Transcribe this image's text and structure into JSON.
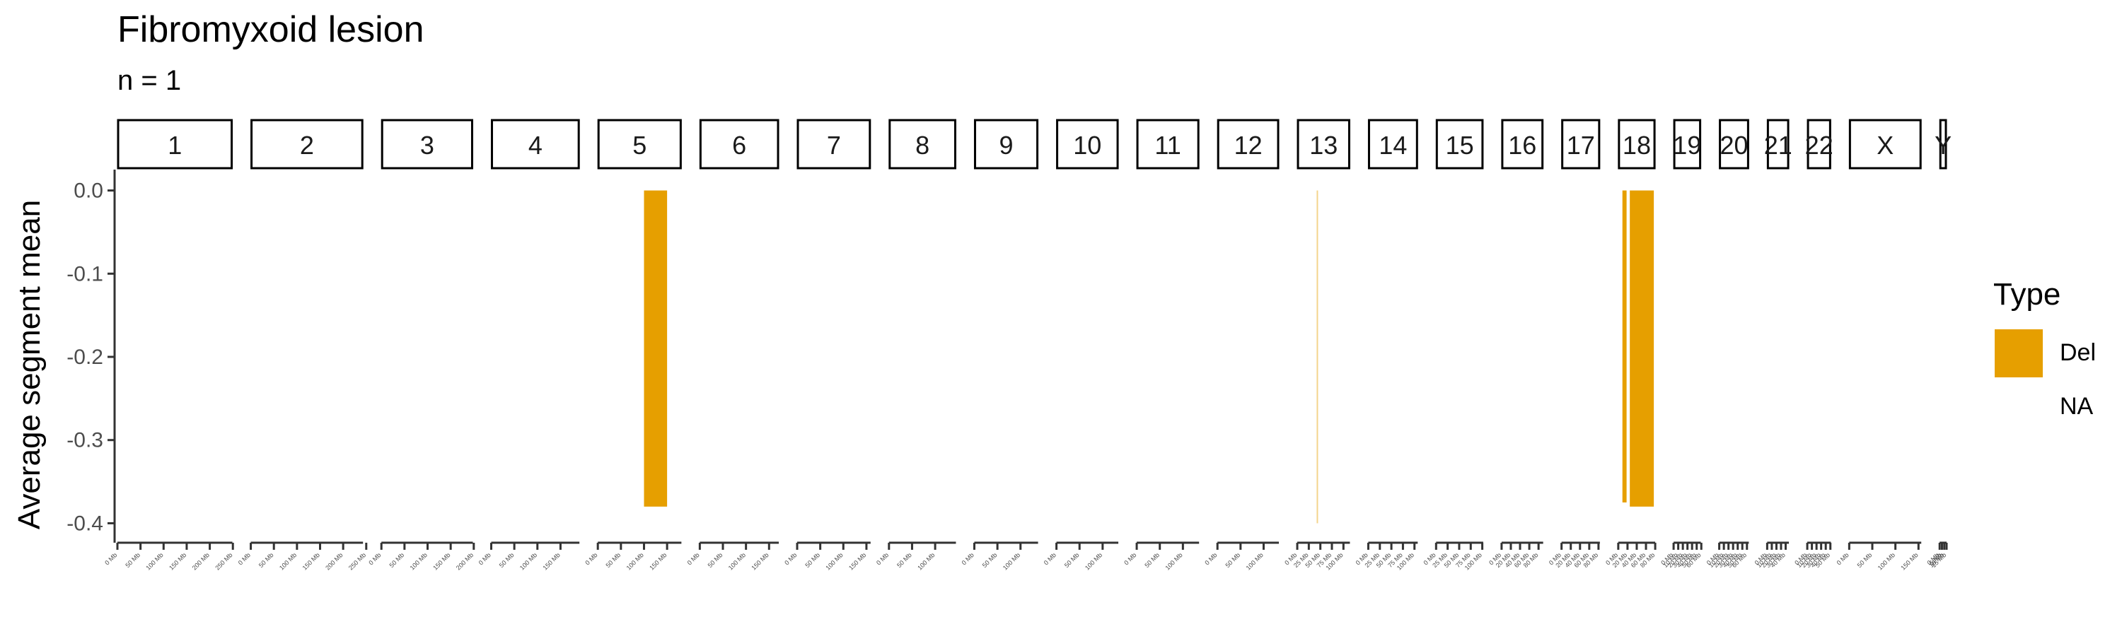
{
  "chart_data": {
    "type": "bar",
    "title": "Fibromyxoid lesion",
    "subtitle": "n = 1",
    "ylabel": "Average segment mean",
    "xlabel": "",
    "ylim": [
      -0.42,
      0.02
    ],
    "yticks": [
      0.0,
      -0.1,
      -0.2,
      -0.3,
      -0.4
    ],
    "ytick_labels": [
      "0.0",
      "-0.1",
      "-0.2",
      "-0.3",
      "-0.4"
    ],
    "grid": false,
    "legend": {
      "title": "Type",
      "position": "right",
      "entries": [
        {
          "label": "Del",
          "color": "#E69F00"
        },
        {
          "label": "NA",
          "color": null
        }
      ]
    },
    "panels": [
      {
        "name": "1",
        "length_mb": 249,
        "ticks": [
          "0 Mb",
          "50 Mb",
          "100 Mb",
          "150 Mb",
          "200 Mb",
          "250 Mb"
        ]
      },
      {
        "name": "2",
        "length_mb": 243,
        "ticks": [
          "0 Mb",
          "50 Mb",
          "100 Mb",
          "150 Mb",
          "200 Mb",
          "250 Mb"
        ]
      },
      {
        "name": "3",
        "length_mb": 198,
        "ticks": [
          "0 Mb",
          "50 Mb",
          "100 Mb",
          "150 Mb",
          "200 Mb"
        ]
      },
      {
        "name": "4",
        "length_mb": 191,
        "ticks": [
          "0 Mb",
          "50 Mb",
          "100 Mb",
          "150 Mb"
        ]
      },
      {
        "name": "5",
        "length_mb": 181,
        "ticks": [
          "0 Mb",
          "50 Mb",
          "100 Mb",
          "150 Mb"
        ]
      },
      {
        "name": "6",
        "length_mb": 171,
        "ticks": [
          "0 Mb",
          "50 Mb",
          "100 Mb",
          "150 Mb"
        ]
      },
      {
        "name": "7",
        "length_mb": 159,
        "ticks": [
          "0 Mb",
          "50 Mb",
          "100 Mb",
          "150 Mb"
        ]
      },
      {
        "name": "8",
        "length_mb": 145,
        "ticks": [
          "0 Mb",
          "50 Mb",
          "100 Mb"
        ]
      },
      {
        "name": "9",
        "length_mb": 138,
        "ticks": [
          "0 Mb",
          "50 Mb",
          "100 Mb"
        ]
      },
      {
        "name": "10",
        "length_mb": 134,
        "ticks": [
          "0 Mb",
          "50 Mb",
          "100 Mb"
        ]
      },
      {
        "name": "11",
        "length_mb": 135,
        "ticks": [
          "0 Mb",
          "50 Mb",
          "100 Mb"
        ]
      },
      {
        "name": "12",
        "length_mb": 133,
        "ticks": [
          "0 Mb",
          "50 Mb",
          "100 Mb"
        ]
      },
      {
        "name": "13",
        "length_mb": 114,
        "ticks": [
          "0 Mb",
          "25 Mb",
          "50 Mb",
          "75 Mb",
          "100 Mb"
        ]
      },
      {
        "name": "14",
        "length_mb": 107,
        "ticks": [
          "0 Mb",
          "25 Mb",
          "50 Mb",
          "75 Mb",
          "100 Mb"
        ]
      },
      {
        "name": "15",
        "length_mb": 102,
        "ticks": [
          "0 Mb",
          "25 Mb",
          "50 Mb",
          "75 Mb",
          "100 Mb"
        ]
      },
      {
        "name": "16",
        "length_mb": 90,
        "ticks": [
          "0 Mb",
          "20 Mb",
          "40 Mb",
          "60 Mb",
          "80 Mb"
        ]
      },
      {
        "name": "17",
        "length_mb": 83,
        "ticks": [
          "0 Mb",
          "20 Mb",
          "40 Mb",
          "60 Mb",
          "80 Mb"
        ]
      },
      {
        "name": "18",
        "length_mb": 80,
        "ticks": [
          "0 Mb",
          "20 Mb",
          "40 Mb",
          "60 Mb",
          "80 Mb"
        ]
      },
      {
        "name": "19",
        "length_mb": 59,
        "ticks": [
          "0 Mb",
          "10 Mb",
          "20 Mb",
          "30 Mb",
          "40 Mb",
          "50 Mb",
          "60 Mb"
        ]
      },
      {
        "name": "20",
        "length_mb": 64,
        "ticks": [
          "0 Mb",
          "10 Mb",
          "20 Mb",
          "30 Mb",
          "40 Mb",
          "50 Mb",
          "60 Mb"
        ]
      },
      {
        "name": "21",
        "length_mb": 47,
        "ticks": [
          "0 Mb",
          "10 Mb",
          "20 Mb",
          "30 Mb",
          "40 Mb"
        ]
      },
      {
        "name": "22",
        "length_mb": 51,
        "ticks": [
          "0 Mb",
          "10 Mb",
          "20 Mb",
          "30 Mb",
          "40 Mb",
          "50 Mb"
        ]
      },
      {
        "name": "X",
        "length_mb": 156,
        "ticks": [
          "0 Mb",
          "50 Mb",
          "100 Mb",
          "150 Mb"
        ]
      },
      {
        "name": "Y",
        "length_mb": 15,
        "ticks": [
          "0 Mb",
          "5 Mb",
          "10 Mb",
          "15 Mb"
        ]
      }
    ],
    "segments": [
      {
        "chrom": "5",
        "start_mb": 100,
        "end_mb": 150,
        "value": -0.38,
        "type": "Del"
      },
      {
        "chrom": "13",
        "start_mb": 42,
        "end_mb": 43,
        "value": -0.4,
        "type": "Del",
        "opacity": 0.45
      },
      {
        "chrom": "18",
        "start_mb": 9,
        "end_mb": 18,
        "value": -0.375,
        "type": "Del"
      },
      {
        "chrom": "18",
        "start_mb": 25,
        "end_mb": 77,
        "value": -0.38,
        "type": "Del"
      }
    ]
  }
}
